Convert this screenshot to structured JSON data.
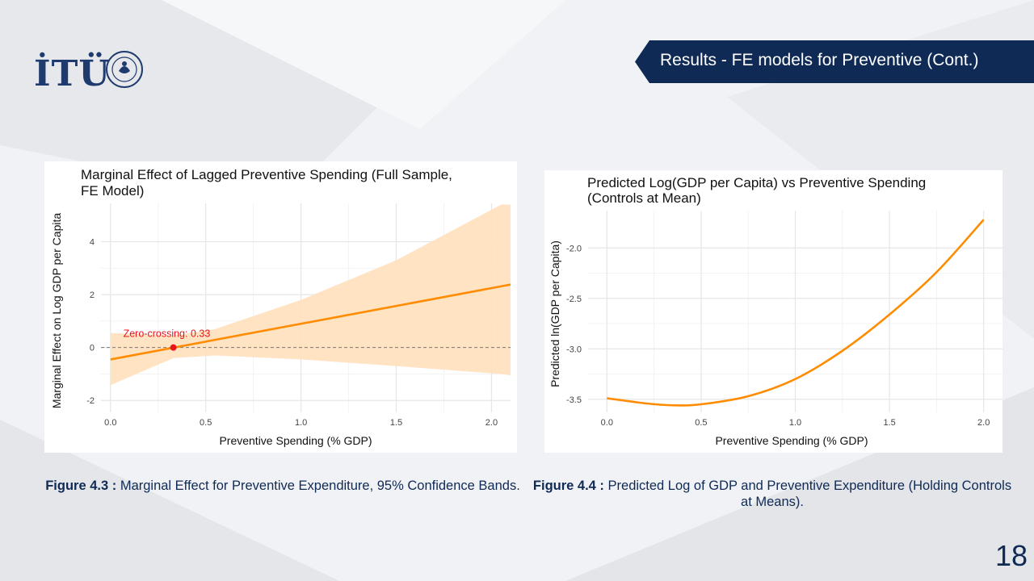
{
  "slide": {
    "title": "Results - FE models for Preventive (Cont.)",
    "logo_text": "İTÜ",
    "page_number": "18",
    "colors": {
      "banner": "#0f2a55",
      "accent": "#ff8c00",
      "band": "#ffe0bd",
      "marker": "#e8141a"
    }
  },
  "captions": [
    {
      "label": "Figure 4.3 :",
      "text": " Marginal  Effect for Preventive Expenditure, 95% Confidence Bands."
    },
    {
      "label": "Figure 4.4 :",
      "text": " Predicted Log of GDP and Preventive Expenditure (Holding Controls at Means)."
    }
  ],
  "chart_data": [
    {
      "type": "line",
      "title_lines": [
        "Marginal Effect of Lagged Preventive Spending (Full Sample,",
        " FE Model)"
      ],
      "xlabel": "Preventive Spending (% GDP)",
      "ylabel": "Marginal Effect on Log GDP per Capita",
      "xlim": [
        -0.05,
        2.1
      ],
      "ylim": [
        -2.45,
        5.45
      ],
      "x_ticks": [
        0.0,
        0.5,
        1.0,
        1.5,
        2.0
      ],
      "x_tick_labels": [
        "0.0",
        "0.5",
        "1.0",
        "1.5",
        "2.0"
      ],
      "y_ticks": [
        -2,
        0,
        2,
        4
      ],
      "y_tick_labels": [
        "-2",
        "0",
        "2",
        "4"
      ],
      "grid": true,
      "series": [
        {
          "values_x": [
            0.0,
            2.1
          ],
          "values_y": [
            -0.45,
            2.38
          ]
        },
        {
          "band_x": [
            0.0,
            0.33,
            0.55,
            1.0,
            1.5,
            2.05,
            2.1
          ],
          "lower": [
            -1.42,
            -0.4,
            -0.3,
            -0.45,
            -0.7,
            -1.0,
            -1.05
          ],
          "upper": [
            0.55,
            0.45,
            0.7,
            1.8,
            3.3,
            5.4,
            5.4
          ]
        }
      ],
      "reference_line_y": 0,
      "annotation": {
        "text": "Zero-crossing: 0.33",
        "x": 0.33,
        "y": 0
      }
    },
    {
      "type": "line",
      "title_lines": [
        "Predicted Log(GDP per Capita) vs Preventive Spending",
        " (Controls at Mean)"
      ],
      "xlabel": "Preventive Spending (% GDP)",
      "ylabel": "Predicted ln(GDP per Capita)",
      "xlim": [
        -0.1,
        2.1
      ],
      "ylim": [
        -3.63,
        -1.63
      ],
      "x_ticks": [
        0.0,
        0.5,
        1.0,
        1.5,
        2.0
      ],
      "x_tick_labels": [
        "0.0",
        "0.5",
        "1.0",
        "1.5",
        "2.0"
      ],
      "y_ticks": [
        -3.5,
        -3.0,
        -2.5,
        -2.0
      ],
      "y_tick_labels": [
        "-3.5",
        "-3.0",
        "-2.5",
        "-2.0"
      ],
      "grid": true,
      "series": [
        {
          "values_x": [
            0.0,
            0.2,
            0.35,
            0.5,
            0.75,
            1.0,
            1.25,
            1.5,
            1.75,
            2.0
          ],
          "values_y": [
            -3.49,
            -3.54,
            -3.56,
            -3.55,
            -3.47,
            -3.3,
            -3.02,
            -2.66,
            -2.24,
            -1.72
          ]
        }
      ]
    }
  ]
}
